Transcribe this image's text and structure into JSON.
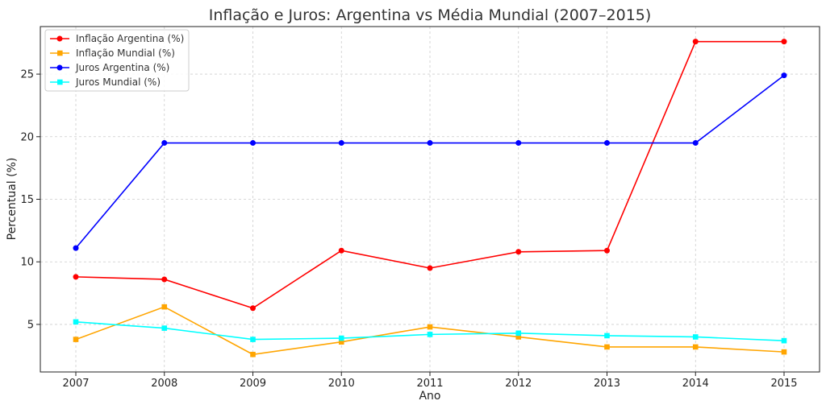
{
  "chart_data": {
    "type": "line",
    "title": "Inflação e Juros: Argentina vs Média Mundial (2007–2015)",
    "xlabel": "Ano",
    "ylabel": "Percentual (%)",
    "categories": [
      "2007",
      "2008",
      "2009",
      "2010",
      "2011",
      "2012",
      "2013",
      "2014",
      "2015"
    ],
    "ylim": [
      1.2,
      28.8
    ],
    "yticks": [
      5,
      10,
      15,
      20,
      25
    ],
    "grid": true,
    "legend_position": "top-left",
    "series": [
      {
        "name": "Inflação Argentina (%)",
        "color": "#ff0000",
        "marker": "circle",
        "values": [
          8.8,
          8.6,
          6.3,
          10.9,
          9.5,
          10.8,
          10.9,
          27.6,
          27.6
        ]
      },
      {
        "name": "Inflação Mundial (%)",
        "color": "#ffa500",
        "marker": "square",
        "values": [
          3.8,
          6.4,
          2.6,
          3.6,
          4.8,
          4.0,
          3.2,
          3.2,
          2.8
        ]
      },
      {
        "name": "Juros Argentina (%)",
        "color": "#0000ff",
        "marker": "circle",
        "values": [
          11.1,
          19.5,
          19.5,
          19.5,
          19.5,
          19.5,
          19.5,
          19.5,
          24.9
        ]
      },
      {
        "name": "Juros Mundial (%)",
        "color": "#00ffff",
        "marker": "square",
        "values": [
          5.2,
          4.7,
          3.8,
          3.9,
          4.2,
          4.3,
          4.1,
          4.0,
          3.7
        ]
      }
    ]
  }
}
